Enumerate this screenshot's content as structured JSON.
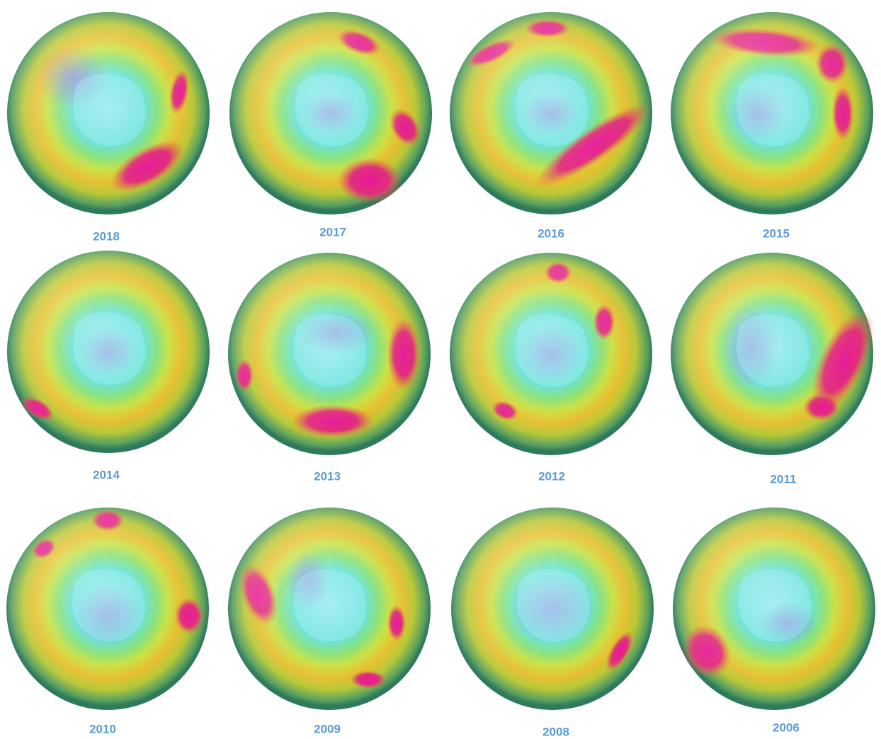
{
  "panels": [
    {
      "label": "2018"
    },
    {
      "label": "2017"
    },
    {
      "label": "2016"
    },
    {
      "label": "2015"
    },
    {
      "label": "2014"
    },
    {
      "label": "2013"
    },
    {
      "label": "2012"
    },
    {
      "label": "2011"
    },
    {
      "label": "2010"
    },
    {
      "label": "2009"
    },
    {
      "label": "2008"
    },
    {
      "label": "2006"
    }
  ]
}
